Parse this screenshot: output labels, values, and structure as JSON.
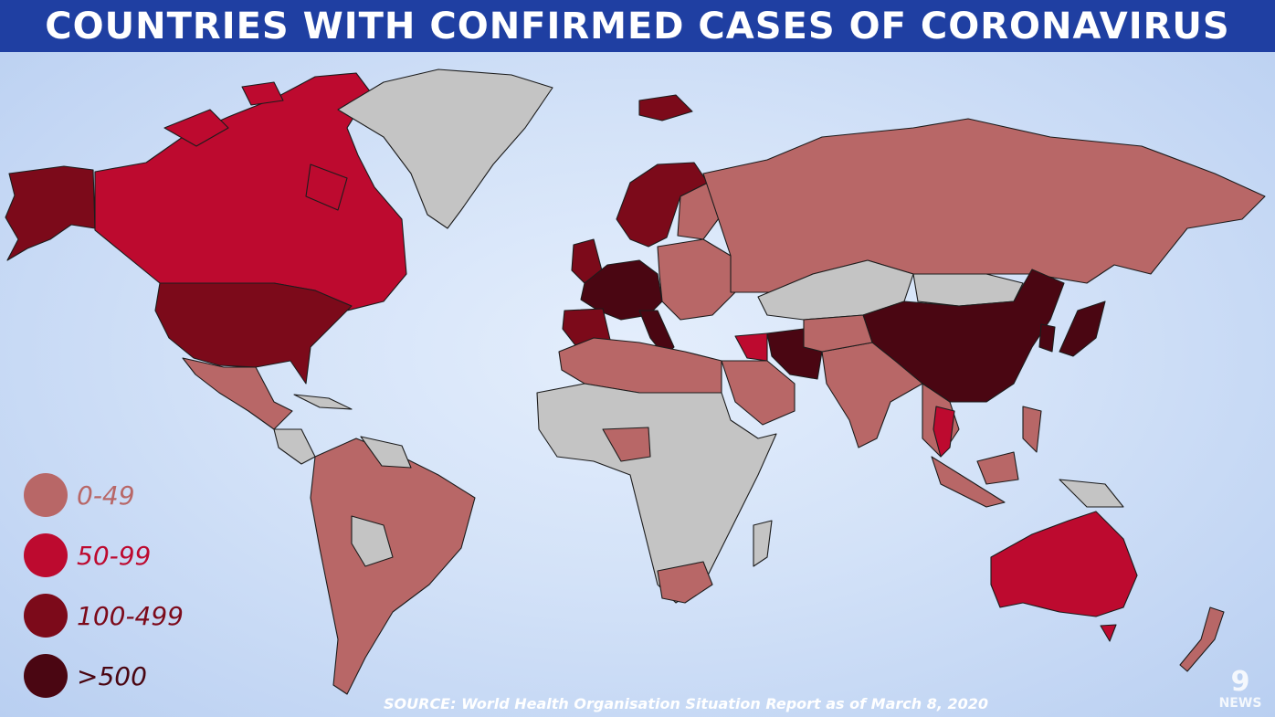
{
  "title": "COUNTRIES WITH CONFIRMED CASES OF CORONAVIRUS",
  "colors": {
    "ocean": "#cfe0f7",
    "no_cases": "#c4c4c4",
    "title_bg": "#1f3fa2"
  },
  "legend": [
    {
      "label": "0-49",
      "color": "#b86767"
    },
    {
      "label": "50-99",
      "color": "#bd0a2f"
    },
    {
      "label": "100-499",
      "color": "#7c0a1a"
    },
    {
      "label": ">500",
      "color": "#4a0612"
    }
  ],
  "source": "SOURCE: World Health Organisation Situation Report as of March 8, 2020",
  "logo": {
    "number": "9",
    "word": "NEWS"
  }
}
